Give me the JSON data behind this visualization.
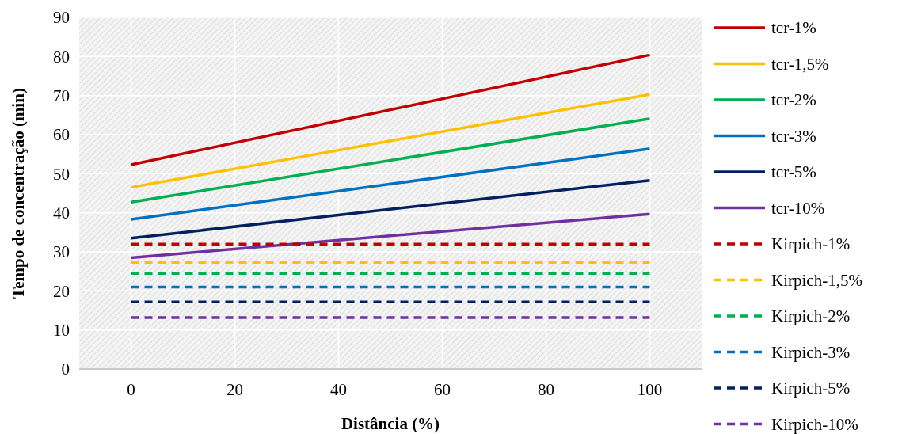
{
  "chart_data": {
    "type": "line",
    "xlabel": "Distância (%)",
    "ylabel": "Tempo de concentração (min)",
    "xlim": [
      -10,
      110
    ],
    "xticks": [
      0,
      20,
      40,
      60,
      80,
      100
    ],
    "ylim": [
      0,
      90
    ],
    "yticks": [
      0,
      10,
      20,
      30,
      40,
      50,
      60,
      70,
      80,
      90
    ],
    "grid": true,
    "legend": "right",
    "marker": "none",
    "x": [
      0,
      100
    ],
    "series": [
      {
        "name": "tcr-1%",
        "color": "#c00000",
        "values": [
          52.3,
          80.4
        ],
        "line_style": "solid"
      },
      {
        "name": "tcr-1,5%",
        "color": "#ffc000",
        "values": [
          46.5,
          70.3
        ],
        "line_style": "solid"
      },
      {
        "name": "tcr-2%",
        "color": "#00b050",
        "values": [
          42.7,
          64.1
        ],
        "line_style": "solid"
      },
      {
        "name": "tcr-3%",
        "color": "#0070c0",
        "values": [
          38.3,
          56.4
        ],
        "line_style": "solid"
      },
      {
        "name": "tcr-5%",
        "color": "#002060",
        "values": [
          33.5,
          48.3
        ],
        "line_style": "solid"
      },
      {
        "name": "tcr-10%",
        "color": "#7030a0",
        "values": [
          28.5,
          39.7
        ],
        "line_style": "solid"
      },
      {
        "name": "Kirpich-1%",
        "color": "#c00000",
        "values": [
          32,
          32
        ],
        "line_style": "dashed"
      },
      {
        "name": "Kirpich-1,5%",
        "color": "#ffc000",
        "values": [
          27.3,
          27.3
        ],
        "line_style": "dashed"
      },
      {
        "name": "Kirpich-2%",
        "color": "#00b050",
        "values": [
          24.5,
          24.5
        ],
        "line_style": "dashed"
      },
      {
        "name": "Kirpich-3%",
        "color": "#0070c0",
        "values": [
          21,
          21
        ],
        "line_style": "dashed"
      },
      {
        "name": "Kirpich-5%",
        "color": "#002060",
        "values": [
          17.2,
          17.2
        ],
        "line_style": "dashed"
      },
      {
        "name": "Kirpich-10%",
        "color": "#7030a0",
        "values": [
          13.2,
          13.2
        ],
        "line_style": "dashed"
      }
    ]
  }
}
